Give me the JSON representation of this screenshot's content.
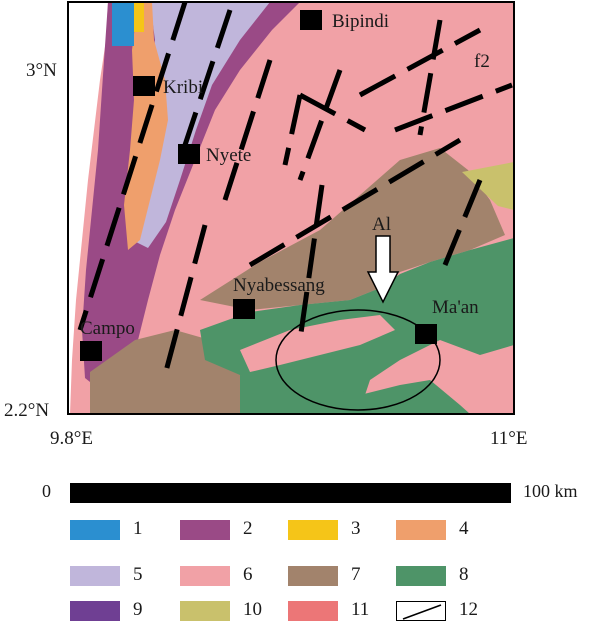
{
  "coordinates": {
    "lat_top": "3°N",
    "lat_bottom": "2.2°N",
    "lon_left": "9.8°E",
    "lon_right": "11°E"
  },
  "places": [
    {
      "name": "Bipindi"
    },
    {
      "name": "Kribi"
    },
    {
      "name": "Nyete"
    },
    {
      "name": "Nyabessang"
    },
    {
      "name": "Campo"
    },
    {
      "name": "Ma'an"
    }
  ],
  "annotations": {
    "fault": "f2",
    "area": "Al"
  },
  "scale": {
    "start": "0",
    "end": "100 km"
  },
  "legend": [
    {
      "label": "1",
      "color": "#2b8fd0"
    },
    {
      "label": "2",
      "color": "#9a4a86"
    },
    {
      "label": "3",
      "color": "#f5c518"
    },
    {
      "label": "4",
      "color": "#ef9f6c"
    },
    {
      "label": "5",
      "color": "#c0b6db"
    },
    {
      "label": "6",
      "color": "#f1a1a6"
    },
    {
      "label": "7",
      "color": "#a2836c"
    },
    {
      "label": "8",
      "color": "#4e9468"
    },
    {
      "label": "9",
      "color": "#6f3f93"
    },
    {
      "label": "10",
      "color": "#c9c16c"
    },
    {
      "label": "11",
      "color": "#ec7677"
    },
    {
      "label": "12",
      "color": "#ffffff",
      "pattern": "fault-line"
    }
  ]
}
